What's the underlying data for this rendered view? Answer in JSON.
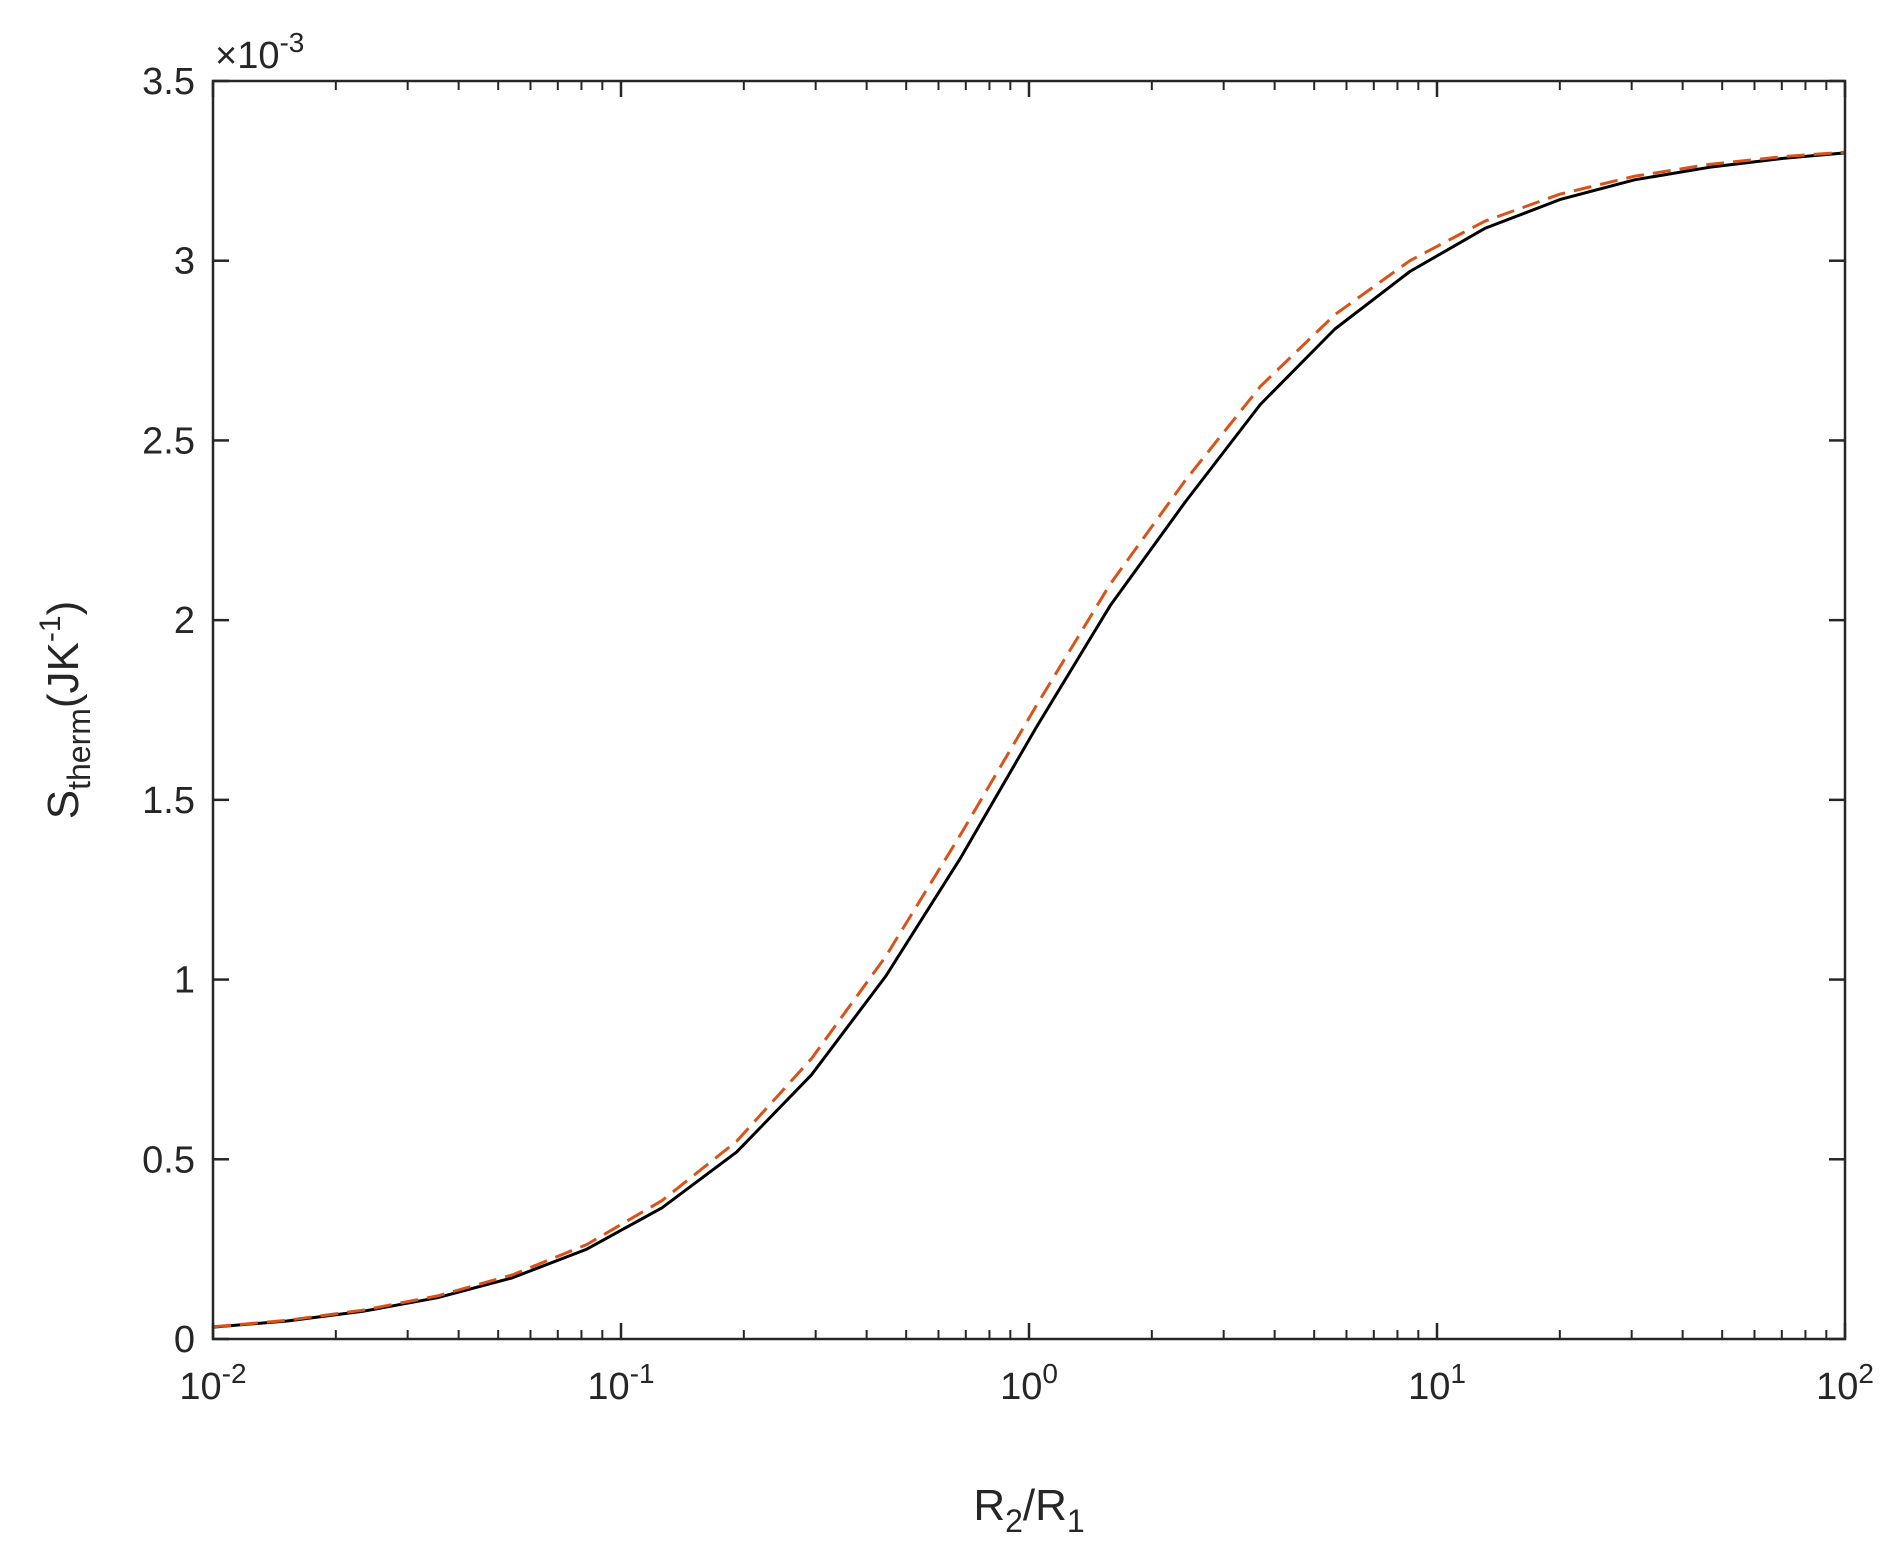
{
  "chart_data": {
    "type": "line",
    "xscale": "log",
    "xlim": [
      0.01,
      100
    ],
    "ylim": [
      0,
      0.0035
    ],
    "y_exponent_label": {
      "base": "×10",
      "exp": "-3"
    },
    "xlabel": {
      "a": "R",
      "a_sub": "2",
      "slash": "/R",
      "b_sub": "1"
    },
    "ylabel": {
      "main": "S",
      "sub": "therm",
      "unit_open": "(JK",
      "unit_sup": "-1",
      "unit_close": ")"
    },
    "x_ticks": [
      {
        "value": 0.01,
        "base": "10",
        "exp": "-2"
      },
      {
        "value": 0.1,
        "base": "10",
        "exp": "-1"
      },
      {
        "value": 1,
        "base": "10",
        "exp": "0"
      },
      {
        "value": 10,
        "base": "10",
        "exp": "1"
      },
      {
        "value": 100,
        "base": "10",
        "exp": "2"
      }
    ],
    "y_ticks": [
      {
        "value": 0,
        "label": "0"
      },
      {
        "value": 0.0005,
        "label": "0.5"
      },
      {
        "value": 0.001,
        "label": "1"
      },
      {
        "value": 0.0015,
        "label": "1.5"
      },
      {
        "value": 0.002,
        "label": "2"
      },
      {
        "value": 0.0025,
        "label": "2.5"
      },
      {
        "value": 0.003,
        "label": "3"
      },
      {
        "value": 0.0035,
        "label": "3.5"
      }
    ],
    "grid": false,
    "series": [
      {
        "color": "#000000",
        "style": "solid",
        "x": [
          0.01,
          0.0152,
          0.0233,
          0.0355,
          0.0541,
          0.0825,
          0.126,
          0.192,
          0.293,
          0.446,
          0.681,
          1.04,
          1.58,
          2.42,
          3.69,
          5.62,
          8.58,
          13.1,
          20.0,
          30.5,
          46.5,
          70.9,
          100
        ],
        "y": [
          3.3e-05,
          5e-05,
          7.7e-05,
          0.000115,
          0.00017,
          0.00025,
          0.000365,
          0.00052,
          0.000735,
          0.00101,
          0.00134,
          0.0017,
          0.00204,
          0.00233,
          0.0026,
          0.00281,
          0.00297,
          0.00309,
          0.00317,
          0.003225,
          0.00326,
          0.003285,
          0.0033
        ]
      },
      {
        "color": "#D95319",
        "style": "dashed",
        "x": [
          0.01,
          0.0152,
          0.0233,
          0.0355,
          0.0541,
          0.0825,
          0.126,
          0.192,
          0.293,
          0.446,
          0.681,
          1.04,
          1.58,
          2.42,
          3.69,
          5.62,
          8.58,
          13.1,
          20.0,
          30.5,
          46.5,
          70.9,
          100
        ],
        "y": [
          3.4e-05,
          5.2e-05,
          8e-05,
          0.00012,
          0.000178,
          0.000263,
          0.000385,
          0.00055,
          0.00078,
          0.001065,
          0.001405,
          0.00176,
          0.0021,
          0.00239,
          0.00265,
          0.00285,
          0.003,
          0.00311,
          0.003185,
          0.003235,
          0.003268,
          0.00329,
          0.003302
        ]
      }
    ]
  }
}
